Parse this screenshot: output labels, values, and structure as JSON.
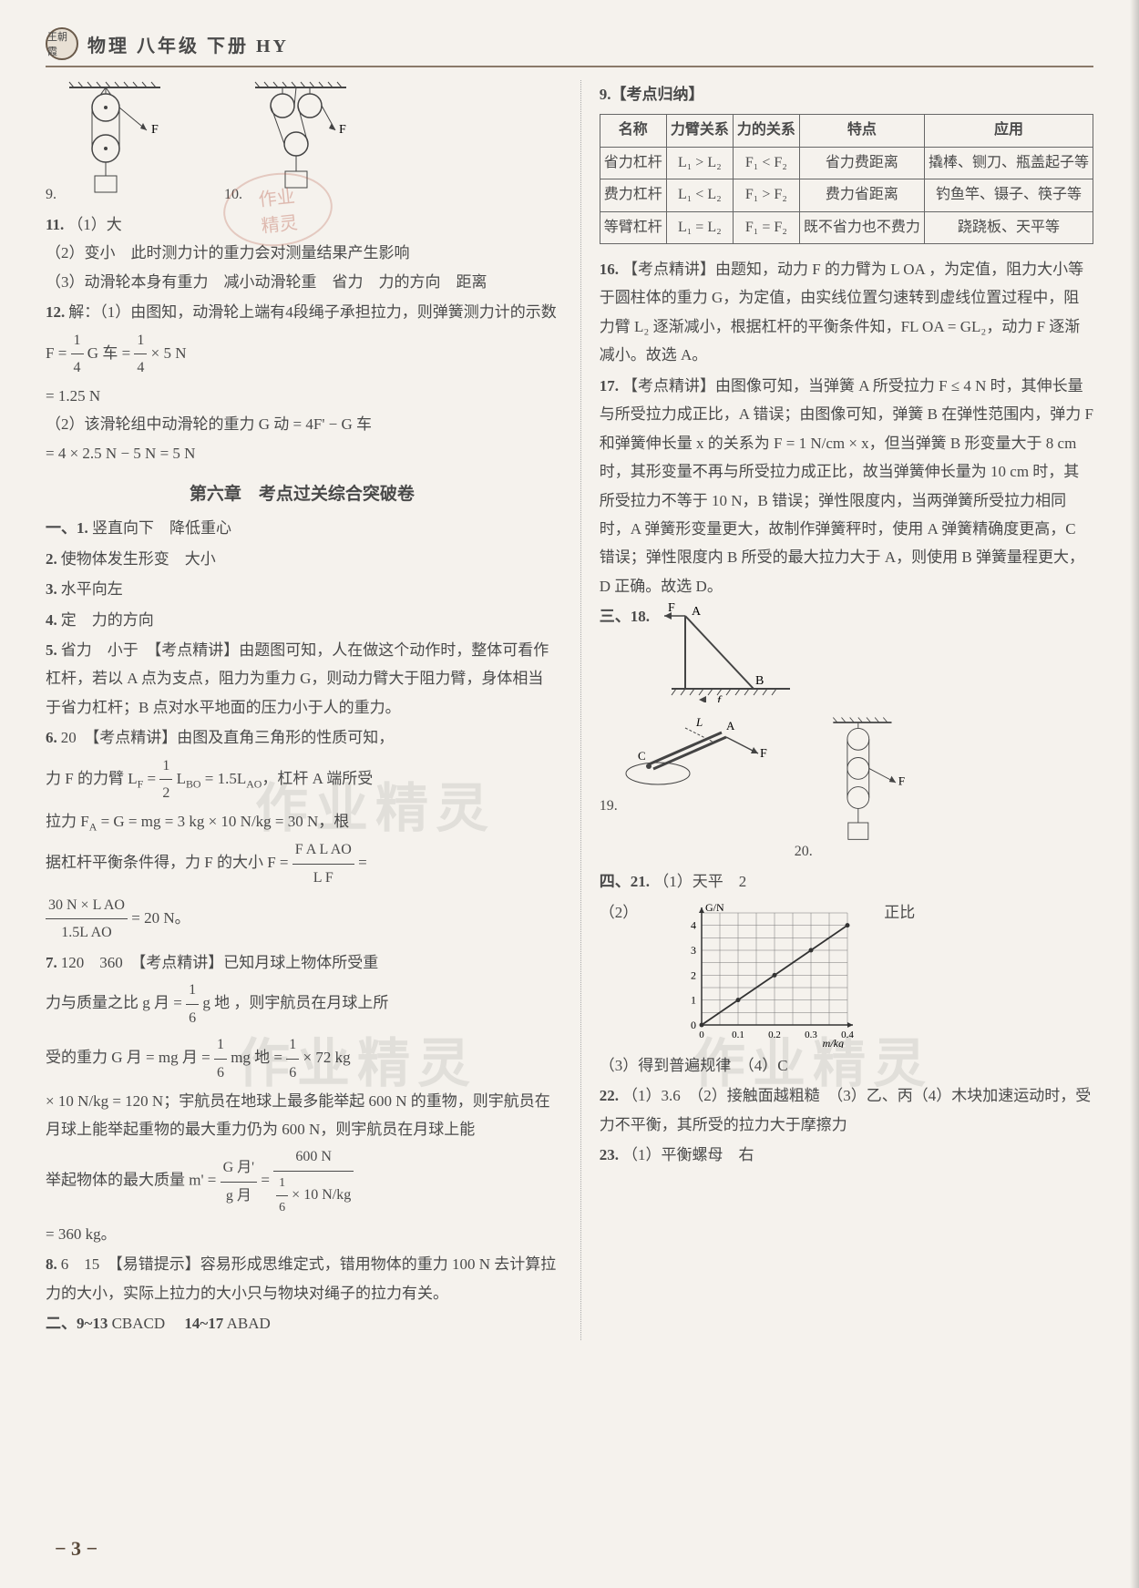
{
  "header": {
    "badge": "王朝霞",
    "title": "物理 八年级 下册 HY"
  },
  "stamp": {
    "line1": "作业",
    "line2": "精灵"
  },
  "watermarks": {
    "w1": "作业精灵",
    "w2": "作业精灵",
    "w3": "作业精灵"
  },
  "left": {
    "q9_label": "9.",
    "q10_label": "10.",
    "pulley_F": "F",
    "q11": {
      "num": "11.",
      "p1": "（1）大",
      "p2": "（2）变小　此时测力计的重力会对测量结果产生影响",
      "p3": "（3）动滑轮本身有重力　减小动滑轮重　省力　力的方向　距离"
    },
    "q12": {
      "num": "12.",
      "line1": "解：（1）由图知，动滑轮上端有4段绳子承担拉力，则弹簧测力计的示数 F = ",
      "frac1_top": "1",
      "frac1_bot": "4",
      "Gche": " G 车 = ",
      "frac2_top": "1",
      "frac2_bot": "4",
      "times5": " × 5 N",
      "eq1": "= 1.25 N",
      "line2": "（2）该滑轮组中动滑轮的重力 G 动 = 4F' − G 车",
      "eq2": "= 4 × 2.5 N − 5 N = 5 N"
    },
    "chapter": "第六章　考点过关综合突破卷",
    "sec1": "一、1.",
    "a1": "竖直向下　降低重心",
    "a2": {
      "num": "2.",
      "text": "使物体发生形变　大小"
    },
    "a3": {
      "num": "3.",
      "text": "水平向左"
    },
    "a4": {
      "num": "4.",
      "text": "定　力的方向"
    },
    "a5": {
      "num": "5.",
      "text": "省力　小于　【考点精讲】由题图可知，人在做这个动作时，整体可看作杠杆，若以 A 点为支点，阻力为重力 G，则动力臂大于阻力臂，身体相当于省力杠杆；B 点对水平地面的压力小于人的重力。"
    },
    "a6": {
      "num": "6.",
      "lead": "20　【考点精讲】由图及直角三角形的性质可知，",
      "line_lf": "力 F 的力臂 L",
      "lf_sub": "F",
      "eq_lf": " = ",
      "frac_lf_top": "1",
      "frac_lf_bot": "2",
      "lbo": " L",
      "bo_sub": "BO",
      "eq15": " = 1.5L",
      "ao_sub": "AO",
      "tail1": "，杠杆 A 端所受",
      "line_fa": "拉力 F",
      "fa_sub": "A",
      "eq_fa": " = G = mg = 3 kg × 10 N/kg = 30 N，根",
      "line_bal": "据杠杆平衡条件得，力 F 的大小 F = ",
      "frac3_top": "F A L AO",
      "frac3_bot": "L F",
      "eq_end": " = ",
      "frac4_top": "30 N × L AO",
      "frac4_bot": "1.5L AO",
      "res": " = 20 N。"
    },
    "a7": {
      "num": "7.",
      "lead": "120　360　【考点精讲】已知月球上物体所受重",
      "line1a": "力与质量之比 g 月 = ",
      "frac_a_top": "1",
      "frac_a_bot": "6",
      "g_earth": " g 地 ，则宇航员在月球上所",
      "line2a": "受的重力 G 月 = mg 月 = ",
      "frac_b_top": "1",
      "frac_b_bot": "6",
      "mg_earth": " mg 地 = ",
      "frac_c_top": "1",
      "frac_c_bot": "6",
      "times72": " × 72 kg",
      "line3": "× 10 N/kg = 120 N；宇航员在地球上最多能举起 600 N 的重物，则宇航员在月球上能举起重物的最大重力仍为 600 N，则宇航员在月球上能",
      "line4a": "举起物体的最大质量 m' = ",
      "frac_d_top": "G 月'",
      "frac_d_bot": "g 月",
      "eq_d": " = ",
      "frac_e_top": "600 N",
      "frac_e_bot_a": "1",
      "frac_e_bot_b": "6",
      "frac_e_bot_tail": " × 10 N/kg",
      "res7": "= 360 kg。"
    },
    "a8": {
      "num": "8.",
      "text": "6　15　【易错提示】容易形成思维定式，错用物体的重力 100 N 去计算拉力的大小，实际上拉力的大小只与物块对绳子的拉力有关。"
    },
    "sec2": "二、9~13",
    "mc1": " CBACD　",
    "sec2b": "14~17",
    "mc2": " ABAD"
  },
  "right": {
    "q9_label": "9.【考点归纳】",
    "lever_table": {
      "headers": [
        "名称",
        "力臂关系",
        "力的关系",
        "特点",
        "应用"
      ],
      "rows": [
        [
          "省力杠杆",
          "L₁ > L₂",
          "F₁ < F₂",
          "省力费距离",
          "撬棒、铡刀、瓶盖起子等"
        ],
        [
          "费力杠杆",
          "L₁ < L₂",
          "F₁ > F₂",
          "费力省距离",
          "钓鱼竿、镊子、筷子等"
        ],
        [
          "等臂杠杆",
          "L₁ = L₂",
          "F₁ = F₂",
          "既不省力也不费力",
          "跷跷板、天平等"
        ]
      ]
    },
    "a16": {
      "num": "16.",
      "text": "【考点精讲】由题知，动力 F 的力臂为 L OA ，为定值，阻力大小等于圆柱体的重力 G，为定值，由实线位置匀速转到虚线位置过程中，阻力臂 L₂ 逐渐减小，根据杠杆的平衡条件知，FL OA = GL₂，动力 F 逐渐减小。故选 A。"
    },
    "a17": {
      "num": "17.",
      "text": "【考点精讲】由图像可知，当弹簧 A 所受拉力 F ≤ 4 N 时，其伸长量与所受拉力成正比，A 错误；由图像可知，弹簧 B 在弹性范围内，弹力 F 和弹簧伸长量 x 的关系为 F = 1 N/cm × x，但当弹簧 B 形变量大于 8 cm 时，其形变量不再与所受拉力成正比，故当弹簧伸长量为 10 cm 时，其所受拉力不等于 10 N，B 错误；弹性限度内，当两弹簧所受拉力相同时，A 弹簧形变量更大，故制作弹簧秤时，使用 A 弹簧精确度更高，C 错误；弹性限度内 B 所受的最大拉力大于 A，则使用 B 弹簧量程更大，D 正确。故选 D。"
    },
    "sec3": "三、18.",
    "d18_labels": {
      "A": "A",
      "B": "B",
      "F": "F",
      "f": "f"
    },
    "d19_label": "19.",
    "d19_letters": {
      "L": "L",
      "A": "A",
      "C": "C",
      "F": "F"
    },
    "d20_label": "20.",
    "d20_F": "F",
    "sec4": "四、21.",
    "a21_1": "（1）天平　2",
    "a21_2_lead": "（2）",
    "a21_2_tail": "正比",
    "chart": {
      "ylabel": "G/N",
      "xlabel": "m/kg",
      "yticks": [
        "0",
        "1",
        "2",
        "3",
        "4"
      ],
      "xticks": [
        "0",
        "0.1",
        "0.2",
        "0.3",
        "0.4"
      ],
      "grid_color": "#777",
      "line_color": "#333",
      "points": [
        [
          0,
          0
        ],
        [
          0.1,
          1
        ],
        [
          0.2,
          2
        ],
        [
          0.3,
          3
        ],
        [
          0.4,
          4
        ]
      ],
      "xlim": [
        0,
        0.4
      ],
      "ylim": [
        0,
        4.5
      ],
      "background": "#f5f2ed"
    },
    "a21_3": "（3）得到普遍规律　（4）C",
    "a22": {
      "num": "22.",
      "text": "（1）3.6　（2）接触面越粗糙　（3）乙、丙（4）木块加速运动时，受力不平衡，其所受的拉力大于摩擦力"
    },
    "a23": {
      "num": "23.",
      "text": "（1）平衡螺母　右"
    }
  },
  "page_number": "− 3 −"
}
